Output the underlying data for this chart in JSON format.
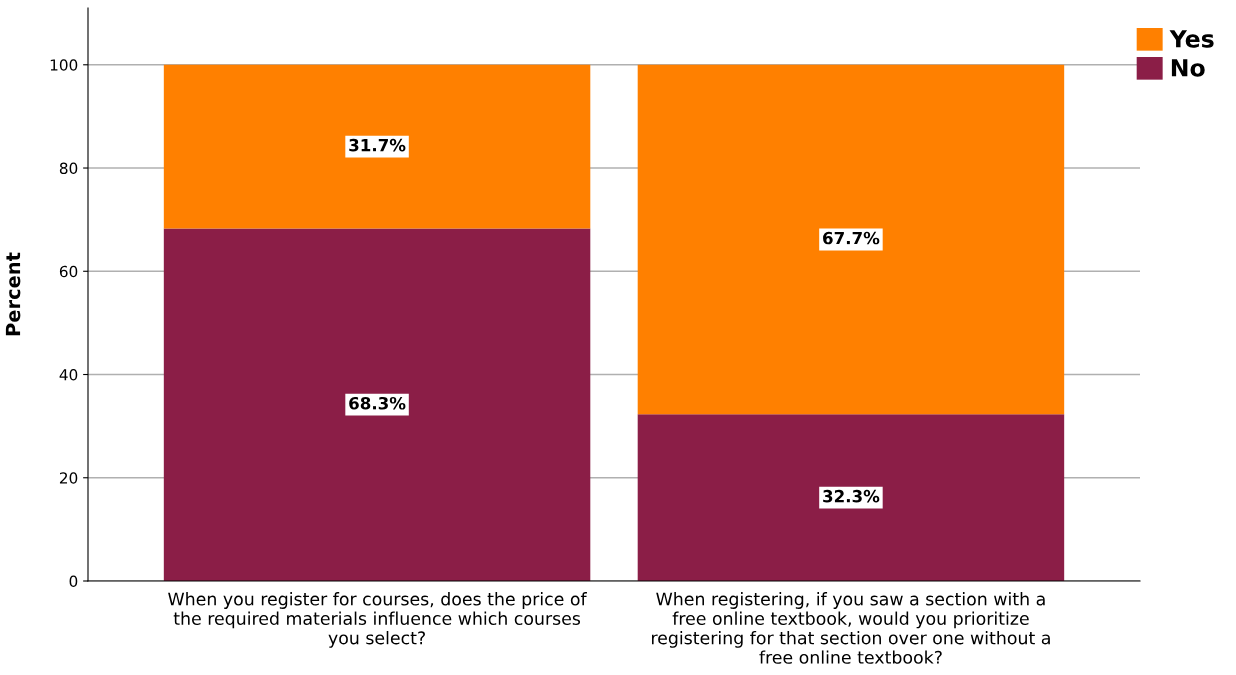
{
  "chart_data": {
    "type": "bar",
    "stacked": true,
    "ylabel": "Percent",
    "categories": [
      "When you register for courses, does the price of\nthe required materials influence which courses\nyou select?",
      "When registering, if you saw a section with a\nfree online textbook, would you prioritize\nregistering for that section over one without a\nfree online textbook?"
    ],
    "series": [
      {
        "name": "No",
        "color": "#8b1e47",
        "values": [
          68.3,
          32.3
        ],
        "value_labels": [
          "68.3%",
          "32.3%"
        ]
      },
      {
        "name": "Yes",
        "color": "#ff8000",
        "values": [
          31.7,
          67.7
        ],
        "value_labels": [
          "31.7%",
          "67.7%"
        ]
      }
    ],
    "ylim": [
      0,
      111
    ],
    "yticks": [
      0,
      20,
      40,
      60,
      80,
      100
    ],
    "grid": "y",
    "legend": "top right"
  }
}
